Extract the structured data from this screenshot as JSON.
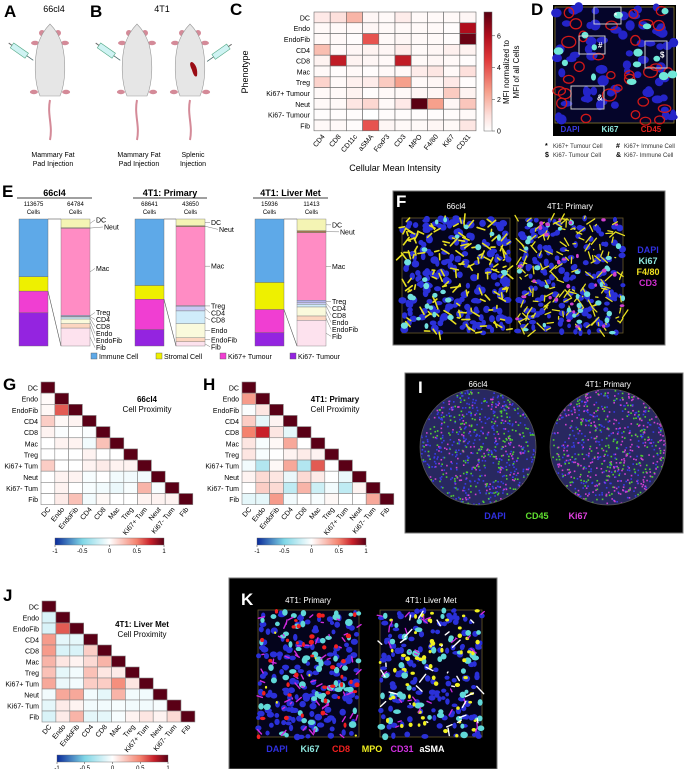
{
  "panel_letters": {
    "A": "A",
    "B": "B",
    "C": "C",
    "D": "D",
    "E": "E",
    "F": "F",
    "G": "G",
    "H": "H",
    "I": "I",
    "J": "J",
    "K": "K"
  },
  "panel_A": {
    "title": "66cl4",
    "caption": [
      "Mammary Fat",
      "Pad Injection"
    ]
  },
  "panel_B": {
    "title": "4T1",
    "captions": [
      [
        "Mammary Fat",
        "Pad Injection"
      ],
      [
        "Splenic",
        "Injection"
      ]
    ]
  },
  "panel_D": {
    "markers": [
      {
        "label": "DAPI",
        "color": "#3a3ae0"
      },
      {
        "label": "Ki67",
        "color": "#8ee8e0"
      },
      {
        "label": "CD45",
        "color": "#e02020"
      }
    ],
    "box_symbols": [
      "*",
      "#",
      "$",
      "&"
    ],
    "key": [
      {
        "symbol": "*",
        "text": "Ki67+ Tumour Cell"
      },
      {
        "symbol": "#",
        "text": "Ki67+ Immune Cell"
      },
      {
        "symbol": "$",
        "text": "Ki67- Tumour Cell"
      },
      {
        "symbol": "&",
        "text": "Ki67- Immune Cell"
      }
    ]
  },
  "panel_F": {
    "titles": [
      "66cl4",
      "4T1: Primary"
    ],
    "markers": [
      {
        "label": "DAPI",
        "color": "#3030e0"
      },
      {
        "label": "Ki67",
        "color": "#8ee8e0"
      },
      {
        "label": "F4/80",
        "color": "#f0e020"
      },
      {
        "label": "CD3",
        "color": "#d030d0"
      }
    ]
  },
  "panel_I": {
    "titles": [
      "66cl4",
      "4T1: Primary"
    ],
    "markers": [
      {
        "label": "DAPI",
        "color": "#3030e0"
      },
      {
        "label": "CD45",
        "color": "#60e030"
      },
      {
        "label": "Ki67",
        "color": "#e040e0"
      }
    ]
  },
  "panel_K": {
    "titles": [
      "4T1: Primary",
      "4T1: Liver Met"
    ],
    "markers": [
      {
        "label": "DAPI",
        "color": "#3030e0"
      },
      {
        "label": "Ki67",
        "color": "#8ee8e0"
      },
      {
        "label": "CD8",
        "color": "#f02020"
      },
      {
        "label": "MPO",
        "color": "#f0f020"
      },
      {
        "label": "CD31",
        "color": "#d030e0"
      },
      {
        "label": "aSMA",
        "color": "#ffffff"
      }
    ]
  },
  "chart_data": [
    {
      "type": "heatmap",
      "title": "",
      "xlabel": "Cellular Mean Intensity",
      "ylabel": "Phenotype",
      "colorbar_label": [
        "MFI normalized to",
        "MFI of all Cells"
      ],
      "colorbar_ticks": [
        "0",
        "2",
        "4",
        "6"
      ],
      "range": [
        0,
        7.5
      ],
      "rows": [
        "DC",
        "Endo",
        "EndoFib",
        "CD4",
        "CD8",
        "Mac",
        "Treg",
        "Ki67+ Tumour",
        "Neut",
        "Ki67- Tumour",
        "Fib"
      ],
      "cols": [
        "CD4",
        "CD8",
        "CD11c",
        "aSMA",
        "FoxP3",
        "CD3",
        "MPO",
        "F4/80",
        "Ki67",
        "CD31"
      ],
      "values": [
        [
          0.7,
          1.0,
          2.0,
          0.3,
          0.2,
          0.6,
          0.2,
          0.2,
          0.2,
          0.3
        ],
        [
          0.2,
          0.2,
          0.2,
          0.3,
          0.2,
          0.2,
          0.2,
          0.2,
          0.1,
          6.0
        ],
        [
          0.2,
          0.2,
          0.1,
          4.0,
          0.2,
          0.3,
          0.2,
          0.2,
          0.1,
          7.2
        ],
        [
          1.8,
          0.2,
          0.3,
          0.4,
          0.3,
          0.6,
          0.2,
          0.3,
          0.5,
          0.4
        ],
        [
          0.4,
          5.5,
          0.4,
          0.3,
          0.2,
          5.5,
          0.2,
          0.3,
          0.2,
          0.1
        ],
        [
          0.2,
          0.1,
          0.2,
          0.1,
          0.2,
          0.2,
          0.6,
          0.8,
          0.2,
          1.0
        ],
        [
          1.3,
          0.2,
          0.5,
          0.6,
          1.5,
          2.5,
          0.2,
          0.3,
          0.7,
          0.1
        ],
        [
          0.2,
          0.2,
          0.4,
          0.1,
          0.2,
          0.2,
          0.3,
          0.3,
          1.5,
          0.4
        ],
        [
          0.2,
          0.2,
          0.8,
          1.2,
          0.2,
          0.7,
          7.5,
          2.5,
          0.3,
          1.6
        ],
        [
          0.1,
          0.1,
          0.1,
          0.0,
          0.1,
          0.1,
          0.1,
          0.1,
          0.1,
          0.2
        ],
        [
          0.2,
          0.2,
          0.1,
          4.0,
          0.3,
          0.2,
          0.2,
          0.3,
          0.2,
          0.8
        ]
      ]
    },
    {
      "type": "bar",
      "stacked": true,
      "legend": [
        {
          "label": "Immune Cell",
          "color": "#5ea9e8"
        },
        {
          "label": "Stromal Cell",
          "color": "#eef000"
        },
        {
          "label": "Ki67+ Tumour",
          "color": "#f03ed2"
        },
        {
          "label": "Ki67- Tumour",
          "color": "#9424e0"
        }
      ],
      "breakdown_colors": {
        "DC": "#f4f4b4",
        "Neut": "#a07850",
        "Mac": "#ff8cc4",
        "Treg": "#b4b4ec",
        "CD4": "#c8c8f4",
        "CD8": "#d0ecfa",
        "Endo": "#fafadc",
        "EndoFib": "#fcd6c0",
        "Fib": "#fde2ee"
      },
      "cells_label": "Cells",
      "groups": [
        {
          "title": "66cl4",
          "counts": [
            "113675",
            "64784"
          ],
          "overview": [
            0.455,
            0.113,
            0.171,
            0.261
          ],
          "breakdown": [
            {
              "name": "DC",
              "frac": 0.069
            },
            {
              "name": "Neut",
              "frac": 0.005
            },
            {
              "name": "Mac",
              "frac": 0.685
            },
            {
              "name": "Treg",
              "frac": 0.008
            },
            {
              "name": "CD4",
              "frac": 0.005
            },
            {
              "name": "CD8",
              "frac": 0.016
            },
            {
              "name": "Endo",
              "frac": 0.037
            },
            {
              "name": "EndoFib",
              "frac": 0.034
            },
            {
              "name": "Fib",
              "frac": 0.141
            }
          ]
        },
        {
          "title": "4T1: Primary",
          "counts": [
            "68641",
            "43650"
          ],
          "overview": [
            0.524,
            0.108,
            0.239,
            0.129
          ],
          "breakdown": [
            {
              "name": "DC",
              "frac": 0.053
            },
            {
              "name": "Neut",
              "frac": 0.008
            },
            {
              "name": "Mac",
              "frac": 0.621
            },
            {
              "name": "Treg",
              "frac": 0.005
            },
            {
              "name": "CD4",
              "frac": 0.037
            },
            {
              "name": "CD8",
              "frac": 0.1
            },
            {
              "name": "Endo",
              "frac": 0.111
            },
            {
              "name": "EndoFib",
              "frac": 0.032
            },
            {
              "name": "Fib",
              "frac": 0.033
            }
          ]
        },
        {
          "title": "4T1: Liver Met",
          "counts": [
            "15936",
            "11413"
          ],
          "overview": [
            0.5,
            0.213,
            0.182,
            0.105
          ],
          "breakdown": [
            {
              "name": "DC",
              "frac": 0.092
            },
            {
              "name": "Neut",
              "frac": 0.016
            },
            {
              "name": "Mac",
              "frac": 0.532
            },
            {
              "name": "Treg",
              "frac": 0.016
            },
            {
              "name": "CD4",
              "frac": 0.016
            },
            {
              "name": "CD8",
              "frac": 0.021
            },
            {
              "name": "Endo",
              "frac": 0.071
            },
            {
              "name": "EndoFib",
              "frac": 0.034
            },
            {
              "name": "Fib",
              "frac": 0.202
            }
          ]
        }
      ]
    },
    {
      "type": "heatmap",
      "title": "66cl4",
      "subtitle": "Cell Proximity",
      "range": [
        -1,
        1
      ],
      "colorbar_ticks": [
        "-1",
        "-0.5",
        "0",
        "0.5",
        "1"
      ],
      "labels": [
        "DC",
        "Endo",
        "EndoFib",
        "CD4",
        "CD8",
        "Mac",
        "Treg",
        "Ki67+ Tum",
        "Neut",
        "Ki67- Tum",
        "Fib"
      ],
      "values": [
        [
          1
        ],
        [
          0.02,
          1
        ],
        [
          0.03,
          0.6,
          1
        ],
        [
          0.2,
          0.03,
          0.05,
          1
        ],
        [
          0.05,
          -0.02,
          0,
          -0.02,
          1
        ],
        [
          0,
          0.05,
          0.05,
          -0.05,
          0.25,
          1
        ],
        [
          0,
          0,
          0,
          0.05,
          0,
          0,
          1
        ],
        [
          0.2,
          0,
          0,
          0.05,
          0.08,
          0.05,
          0.05,
          1
        ],
        [
          0,
          0.05,
          0.05,
          -0.03,
          0,
          -0.05,
          -0.05,
          -0.05,
          1
        ],
        [
          0,
          0.05,
          0,
          -0.03,
          -0.05,
          -0.08,
          -0.03,
          0.3,
          -0.03,
          1
        ],
        [
          0,
          0.08,
          0.25,
          -0.05,
          0.03,
          0,
          0,
          0.05,
          0.05,
          0.05,
          1
        ]
      ]
    },
    {
      "type": "heatmap",
      "title": "4T1: Primary",
      "subtitle": "Cell Proximity",
      "range": [
        -1,
        1
      ],
      "colorbar_ticks": [
        "-1",
        "-0.5",
        "0",
        "0.5",
        "1"
      ],
      "labels": [
        "DC",
        "Endo",
        "EndoFib",
        "CD4",
        "CD8",
        "Mac",
        "Treg",
        "Ki67+ Tum",
        "Neut",
        "Ki67- Tum",
        "Fib"
      ],
      "values": [
        [
          1
        ],
        [
          0.4,
          1
        ],
        [
          -0.02,
          0.1,
          1
        ],
        [
          0.2,
          -0.1,
          0.05,
          1
        ],
        [
          0.5,
          0.75,
          0.1,
          -0.1,
          1
        ],
        [
          0.1,
          -0.03,
          0.03,
          0.35,
          0,
          1
        ],
        [
          0.1,
          -0.03,
          0,
          0.05,
          0.08,
          0.05,
          1
        ],
        [
          -0.05,
          -0.3,
          0.03,
          0.35,
          -0.3,
          0.6,
          0,
          1
        ],
        [
          0.05,
          0.15,
          0.1,
          -0.08,
          0.15,
          0.08,
          0,
          -0.08,
          1
        ],
        [
          0,
          0.2,
          0.15,
          -0.25,
          0.3,
          -0.2,
          -0.05,
          -0.25,
          0.05,
          1
        ],
        [
          -0.1,
          -0.1,
          0.4,
          -0.05,
          0,
          -0.03,
          0.03,
          0,
          0,
          0.35,
          1
        ]
      ]
    },
    {
      "type": "heatmap",
      "title": "4T1: Liver Met",
      "subtitle": "Cell Proximity",
      "range": [
        -1,
        1
      ],
      "colorbar_ticks": [
        "-1",
        "-0.5",
        "0",
        "0.5",
        "1"
      ],
      "labels": [
        "DC",
        "Endo",
        "EndoFib",
        "CD4",
        "CD8",
        "Mac",
        "Treg",
        "Ki67+ Tum",
        "Neut",
        "Ki67- Tum",
        "Fib"
      ],
      "values": [
        [
          1
        ],
        [
          -0.15,
          1
        ],
        [
          -0.15,
          0.6,
          1
        ],
        [
          0.4,
          -0.1,
          -0.1,
          1
        ],
        [
          0.4,
          -0.15,
          -0.15,
          0.2,
          1
        ],
        [
          0.3,
          0.1,
          0.05,
          0.15,
          0.3,
          1
        ],
        [
          0.25,
          -0.1,
          -0.05,
          0.25,
          0.1,
          0.08,
          1
        ],
        [
          0.35,
          -0.08,
          -0.05,
          0.2,
          0.2,
          0.45,
          0.1,
          1
        ],
        [
          -0.05,
          0.35,
          0.35,
          -0.05,
          -0.1,
          0.3,
          -0.05,
          -0.05,
          1
        ],
        [
          -0.1,
          0.08,
          0.05,
          -0.05,
          -0.05,
          -0.03,
          -0.05,
          -0.05,
          -0.03,
          1
        ],
        [
          -0.15,
          0.08,
          0.3,
          -0.1,
          -0.1,
          -0.03,
          0.05,
          0.1,
          0.05,
          0.15,
          1
        ]
      ]
    }
  ]
}
